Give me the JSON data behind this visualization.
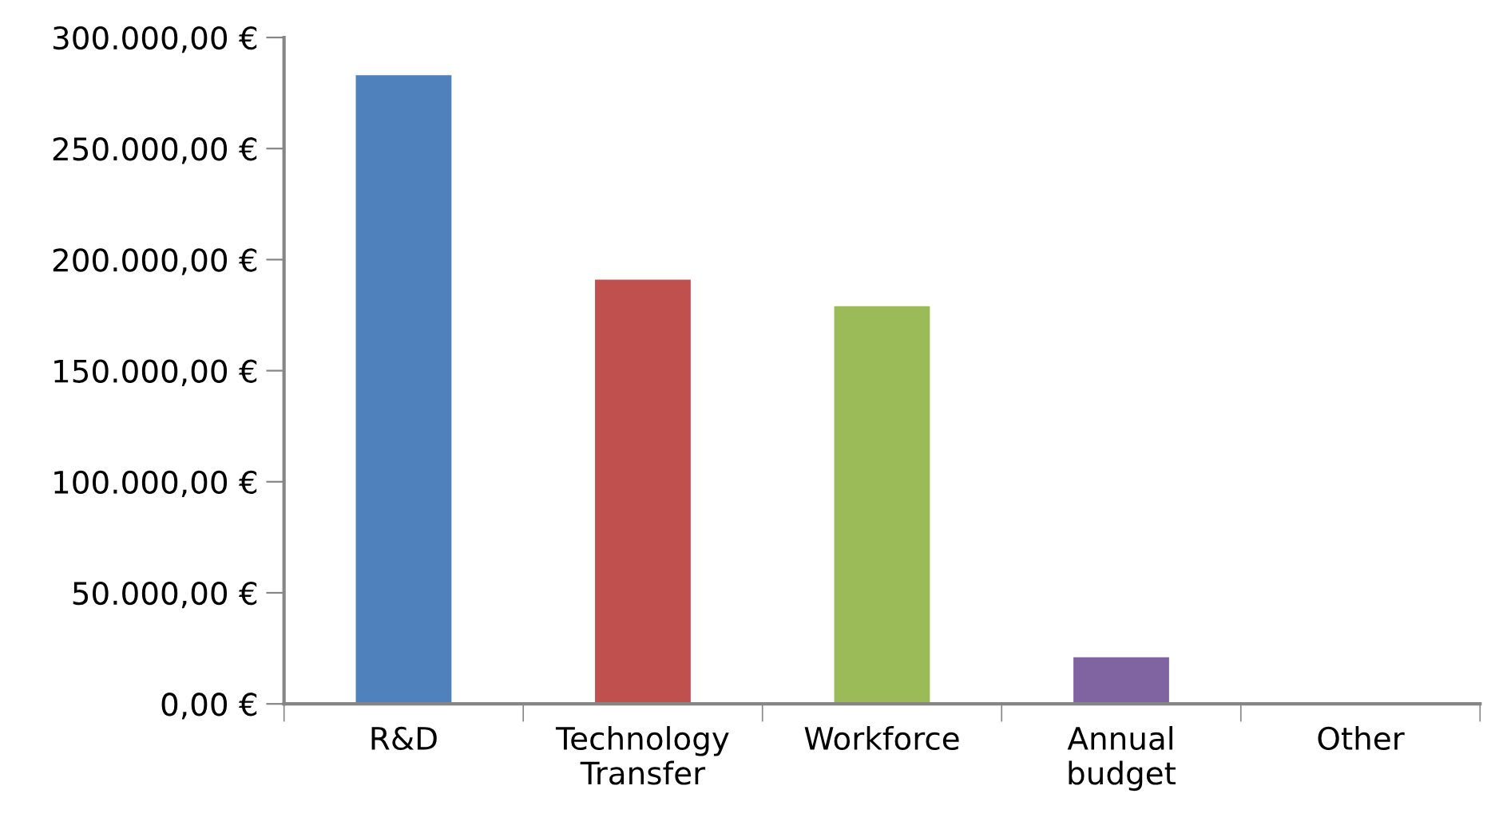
{
  "chart_data": {
    "type": "bar",
    "categories": [
      "R&D",
      "Technology\nTransfer",
      "Workforce",
      "Annual\nbudget",
      "Other"
    ],
    "values": [
      283000,
      191000,
      179000,
      21000,
      0
    ],
    "colors": [
      "#4f81bd",
      "#c0504d",
      "#9bbb59",
      "#8064a2",
      "#4bacc6"
    ],
    "ylim": [
      0,
      300000
    ],
    "yticks": [
      {
        "value": 0,
        "label": "0,00 €"
      },
      {
        "value": 50000,
        "label": "50.000,00 €"
      },
      {
        "value": 100000,
        "label": "100.000,00 €"
      },
      {
        "value": 150000,
        "label": "150.000,00 €"
      },
      {
        "value": 200000,
        "label": "200.000,00 €"
      },
      {
        "value": 250000,
        "label": "250.000,00 €"
      },
      {
        "value": 300000,
        "label": "300.000,00 €"
      }
    ],
    "grid": false
  }
}
